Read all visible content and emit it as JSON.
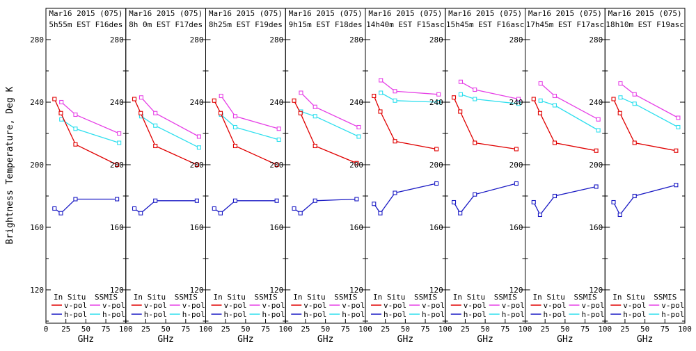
{
  "chart_data": {
    "type": "line",
    "ylabel": "Brightness Temperature, Deg K",
    "xlabel": "GHz",
    "xlim": [
      0,
      100
    ],
    "ylim": [
      99,
      300
    ],
    "x_tick_labels": [
      0,
      25,
      50,
      75,
      100
    ],
    "y_tick_labels": [
      120,
      160,
      200,
      240,
      280
    ],
    "y_minor_ticks": [
      100,
      140,
      180,
      220,
      260
    ],
    "grid": false,
    "legend": {
      "insitu_label": "In Situ",
      "ssmis_label": "SSMIS",
      "vpol_label": "v-pol",
      "hpol_label": "h-pol"
    },
    "colors": {
      "insitu_vpol": "#e00000",
      "insitu_hpol": "#1a1ac4",
      "ssmis_vpol": "#e640e6",
      "ssmis_hpol": "#2fdfee",
      "axis": "#000000",
      "background": "#ffffff"
    },
    "x_ghz_insitu": [
      10.7,
      18.7,
      37,
      89
    ],
    "x_ghz_ssmis": [
      19.35,
      37,
      91.655
    ],
    "panels": [
      {
        "title_line1": "Mar16 2015 (075)",
        "title_line2": "5h55m EST F16des",
        "insitu_vpol": [
          242,
          233,
          213,
          200
        ],
        "insitu_hpol": [
          172,
          169,
          178,
          178
        ],
        "ssmis_vpol": [
          240,
          232,
          220
        ],
        "ssmis_hpol": [
          229,
          223,
          214
        ]
      },
      {
        "title_line1": "Mar16 2015 (075)",
        "title_line2": "8h 0m EST F17des",
        "insitu_vpol": [
          242,
          233,
          212,
          200
        ],
        "insitu_hpol": [
          172,
          169,
          177,
          177
        ],
        "ssmis_vpol": [
          243,
          233,
          218
        ],
        "ssmis_hpol": [
          231,
          225,
          211
        ]
      },
      {
        "title_line1": "Mar16 2015 (075)",
        "title_line2": "8h25m EST F19des",
        "insitu_vpol": [
          241,
          233,
          212,
          200
        ],
        "insitu_hpol": [
          172,
          169,
          177,
          177
        ],
        "ssmis_vpol": [
          244,
          231,
          223
        ],
        "ssmis_hpol": [
          232,
          224,
          216
        ]
      },
      {
        "title_line1": "Mar16 2015 (075)",
        "title_line2": "9h15m EST F18des",
        "insitu_vpol": [
          241,
          233,
          212,
          201
        ],
        "insitu_hpol": [
          172,
          169,
          177,
          178
        ],
        "ssmis_vpol": [
          246,
          237,
          224
        ],
        "ssmis_hpol": [
          234,
          231,
          218
        ]
      },
      {
        "title_line1": "Mar16 2015 (075)",
        "title_line2": "14h40m EST F15asc",
        "insitu_vpol": [
          244,
          234,
          215,
          210
        ],
        "insitu_hpol": [
          175,
          169,
          182,
          188
        ],
        "ssmis_vpol": [
          254,
          247,
          245
        ],
        "ssmis_hpol": [
          246,
          241,
          240
        ]
      },
      {
        "title_line1": "Mar16 2015 (075)",
        "title_line2": "15h45m EST F16asc",
        "insitu_vpol": [
          243,
          234,
          214,
          210
        ],
        "insitu_hpol": [
          176,
          169,
          181,
          188
        ],
        "ssmis_vpol": [
          253,
          248,
          242
        ],
        "ssmis_hpol": [
          245,
          242,
          239
        ]
      },
      {
        "title_line1": "Mar16 2015 (075)",
        "title_line2": "17h45m EST F17asc",
        "insitu_vpol": [
          242,
          233,
          214,
          209
        ],
        "insitu_hpol": [
          176,
          168,
          180,
          186
        ],
        "ssmis_vpol": [
          252,
          244,
          229
        ],
        "ssmis_hpol": [
          241,
          238,
          222
        ]
      },
      {
        "title_line1": "Mar16 2015 (075)",
        "title_line2": "18h10m EST F19asc",
        "insitu_vpol": [
          242,
          233,
          214,
          209
        ],
        "insitu_hpol": [
          176,
          168,
          180,
          187
        ],
        "ssmis_vpol": [
          252,
          245,
          230
        ],
        "ssmis_hpol": [
          243,
          239,
          224
        ]
      }
    ]
  }
}
